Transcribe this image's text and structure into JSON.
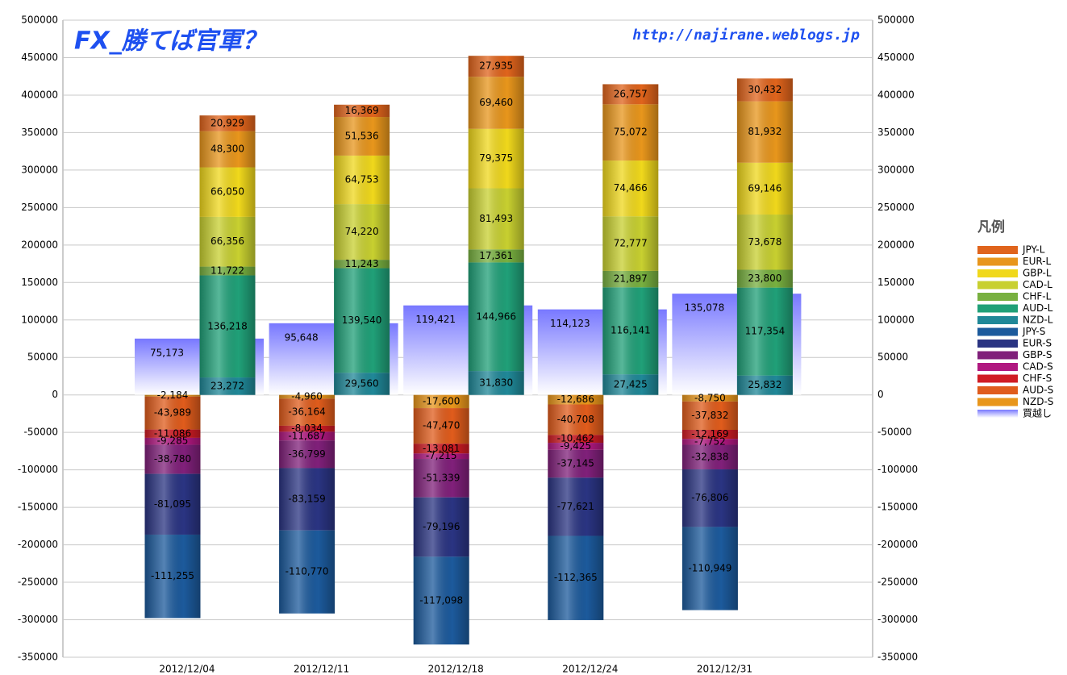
{
  "chart_data": {
    "type": "bar",
    "title": "FX_勝てば官軍？",
    "subtitle": "http://najirane.weblogs.jp",
    "legend_title": "凡例",
    "legend": "right",
    "grid": true,
    "categories": [
      "2012/12/04",
      "2012/12/11",
      "2012/12/18",
      "2012/12/24",
      "2012/12/31"
    ],
    "ylim": [
      -350000,
      500000
    ],
    "yticks": [
      -350000,
      -300000,
      -250000,
      -200000,
      -150000,
      -100000,
      -50000,
      0,
      50000,
      100000,
      150000,
      200000,
      250000,
      300000,
      350000,
      400000,
      450000,
      500000
    ],
    "series": [
      {
        "name": "JPY-L",
        "color": "#e0641c",
        "stacked": true,
        "values": [
          20929,
          16369,
          27935,
          26757,
          30432
        ],
        "value_labels": [
          "20,929",
          "16,369",
          "27,935",
          "26,757",
          "30,432"
        ]
      },
      {
        "name": "EUR-L",
        "color": "#e8961c",
        "stacked": true,
        "values": [
          48300,
          51536,
          69460,
          75072,
          81932
        ],
        "value_labels": [
          "48,300",
          "51,536",
          "69,460",
          "75,072",
          "81,932"
        ]
      },
      {
        "name": "GBP-L",
        "color": "#f0d81c",
        "stacked": true,
        "values": [
          66050,
          64753,
          79375,
          74466,
          69146
        ],
        "value_labels": [
          "66,050",
          "64,753",
          "79,375",
          "74,466",
          "69,146"
        ]
      },
      {
        "name": "CAD-L",
        "color": "#c8d030",
        "stacked": true,
        "values": [
          66356,
          74220,
          81493,
          72777,
          73678
        ],
        "value_labels": [
          "66,356",
          "74,220",
          "81,493",
          "72,777",
          "73,678"
        ]
      },
      {
        "name": "CHF-L",
        "color": "#78b040",
        "stacked": true,
        "values": [
          11722,
          11243,
          17361,
          21897,
          23800
        ],
        "value_labels": [
          "11,722",
          "11,243",
          "17,361",
          "21,897",
          "23,800"
        ]
      },
      {
        "name": "AUD-L",
        "color": "#20a078",
        "stacked": true,
        "values": [
          136218,
          139540,
          144966,
          116141,
          117354
        ],
        "value_labels": [
          "136,218",
          "139,540",
          "144,966",
          "116,141",
          "117,354"
        ]
      },
      {
        "name": "NZD-L",
        "color": "#208898",
        "stacked": true,
        "values": [
          23272,
          29560,
          31830,
          27425,
          25832
        ],
        "value_labels": [
          "23,272",
          "29,560",
          "31,830",
          "27,425",
          "25,832"
        ]
      },
      {
        "name": "JPY-S",
        "color": "#1c5a9c",
        "stacked": true,
        "values": [
          -111255,
          -110770,
          -117098,
          -112365,
          -110949
        ],
        "value_labels": [
          "-111,255",
          "-110,770",
          "-117,098",
          "-112,365",
          "-110,949"
        ]
      },
      {
        "name": "EUR-S",
        "color": "#2a3482",
        "stacked": true,
        "values": [
          -81095,
          -83159,
          -79196,
          -77621,
          -76806
        ],
        "value_labels": [
          "-81,095",
          "-83,159",
          "-79,196",
          "-77,621",
          "-76,806"
        ]
      },
      {
        "name": "GBP-S",
        "color": "#80207a",
        "stacked": true,
        "values": [
          -38780,
          -36799,
          -51339,
          -37145,
          -32838
        ],
        "value_labels": [
          "-38,780",
          "-36,799",
          "-51,339",
          "-37,145",
          "-32,838"
        ]
      },
      {
        "name": "CAD-S",
        "color": "#b01880",
        "stacked": true,
        "values": [
          -9285,
          -11687,
          -7215,
          -9425,
          -7752
        ],
        "value_labels": [
          "-9,285",
          "-11,687",
          "-7,215",
          "-9,425",
          "-7,752"
        ]
      },
      {
        "name": "CHF-S",
        "color": "#d01c24",
        "stacked": true,
        "values": [
          -11086,
          -8034,
          -13081,
          -10462,
          -12169
        ],
        "value_labels": [
          "-11,086",
          "-8,034",
          "-13,081",
          "-10,462",
          "-12,169"
        ]
      },
      {
        "name": "AUD-S",
        "color": "#e05c1c",
        "stacked": true,
        "values": [
          -43989,
          -36164,
          -47470,
          -40708,
          -37832
        ],
        "value_labels": [
          "-43,989",
          "-36,164",
          "-47,470",
          "-40,708",
          "-37,832"
        ]
      },
      {
        "name": "NZD-S",
        "color": "#e8961c",
        "stacked": true,
        "values": [
          -2184,
          -4960,
          -17600,
          -12686,
          -8750
        ],
        "value_labels": [
          "-2,184",
          "-4,960",
          "-17,600",
          "-12,686",
          "-8,750"
        ]
      },
      {
        "name": "買越し",
        "color": "#7878ff",
        "stacked": false,
        "values": [
          75173,
          95648,
          119421,
          114123,
          135078
        ],
        "value_labels": [
          "75,173",
          "95,648",
          "119,421",
          "114,123",
          "135,078"
        ]
      }
    ]
  }
}
